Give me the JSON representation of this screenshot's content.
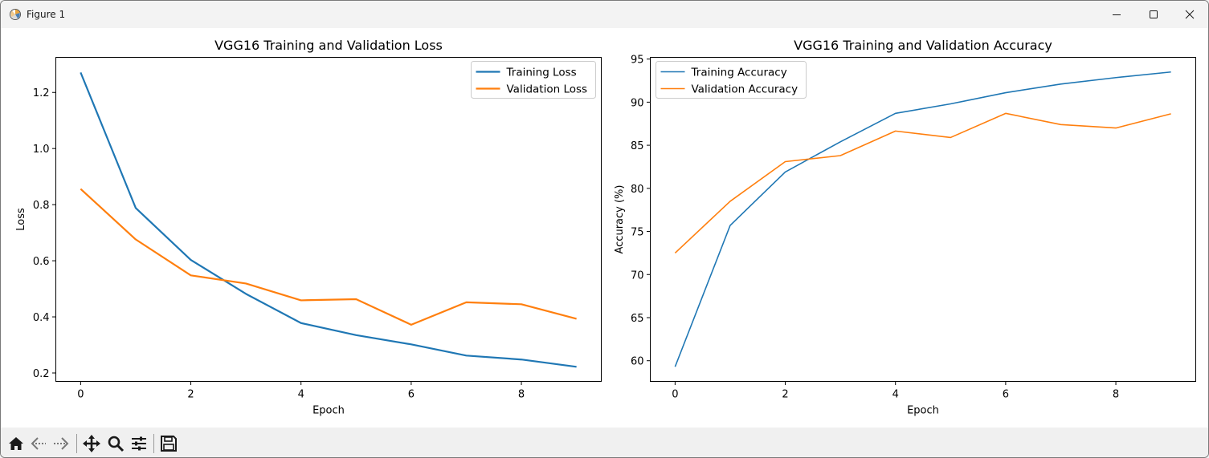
{
  "window": {
    "title": "Figure 1"
  },
  "toolbar": {
    "icons": [
      "home-icon",
      "back-icon",
      "forward-icon",
      "pan-icon",
      "zoom-icon",
      "configure-icon",
      "save-icon"
    ]
  },
  "chart_data": [
    {
      "type": "line",
      "title": "VGG16 Training and Validation Loss",
      "xlabel": "Epoch",
      "ylabel": "Loss",
      "xlim": [
        -0.45,
        9.45
      ],
      "ylim": [
        0.17,
        1.325
      ],
      "xticks": [
        0,
        2,
        4,
        6,
        8
      ],
      "xtick_labels": [
        "0",
        "2",
        "4",
        "6",
        "8"
      ],
      "yticks": [
        0.2,
        0.4,
        0.6,
        0.8,
        1.0,
        1.2
      ],
      "ytick_labels": [
        "0.2",
        "0.4",
        "0.6",
        "0.8",
        "1.0",
        "1.2"
      ],
      "legend_position": "top-right",
      "x": [
        0,
        1,
        2,
        3,
        4,
        5,
        6,
        7,
        8,
        9
      ],
      "series": [
        {
          "name": "Training Loss",
          "color": "#1f77b4",
          "values": [
            1.271,
            0.788,
            0.603,
            0.482,
            0.378,
            0.335,
            0.302,
            0.262,
            0.248,
            0.222
          ]
        },
        {
          "name": "Validation Loss",
          "color": "#ff7f0e",
          "values": [
            0.856,
            0.676,
            0.548,
            0.519,
            0.459,
            0.463,
            0.372,
            0.452,
            0.445,
            0.393
          ]
        }
      ]
    },
    {
      "type": "line",
      "title": "VGG16 Training and Validation Accuracy",
      "xlabel": "Epoch",
      "ylabel": "Accuracy (%)",
      "xlim": [
        -0.45,
        9.45
      ],
      "ylim": [
        57.6,
        95.2
      ],
      "xticks": [
        0,
        2,
        4,
        6,
        8
      ],
      "xtick_labels": [
        "0",
        "2",
        "4",
        "6",
        "8"
      ],
      "yticks": [
        60,
        65,
        70,
        75,
        80,
        85,
        90,
        95
      ],
      "ytick_labels": [
        "60",
        "65",
        "70",
        "75",
        "80",
        "85",
        "90",
        "95"
      ],
      "legend_position": "top-left",
      "x": [
        0,
        1,
        2,
        3,
        4,
        5,
        6,
        7,
        8,
        9
      ],
      "series": [
        {
          "name": "Training Accuracy",
          "color": "#1f77b4",
          "values": [
            59.3,
            75.7,
            81.9,
            85.4,
            88.7,
            89.8,
            91.1,
            92.1,
            92.85,
            93.5
          ]
        },
        {
          "name": "Validation Accuracy",
          "color": "#ff7f0e",
          "values": [
            72.5,
            78.5,
            83.1,
            83.8,
            86.65,
            85.9,
            88.7,
            87.4,
            87.0,
            88.65
          ]
        }
      ]
    }
  ]
}
